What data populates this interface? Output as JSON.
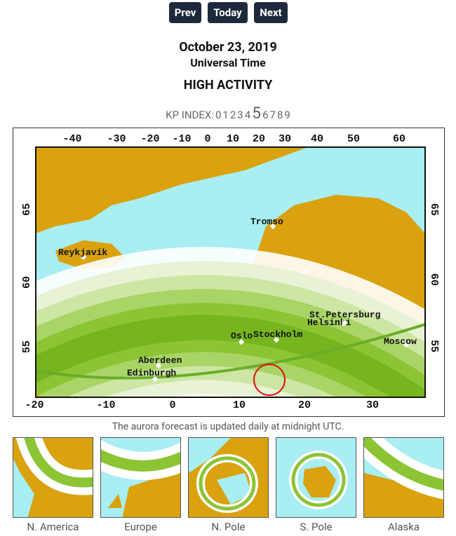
{
  "nav": {
    "prev": "Prev",
    "today": "Today",
    "next": "Next"
  },
  "header": {
    "date": "October 23, 2019",
    "time_zone": "Universal Time",
    "activity": "HIGH ACTIVITY"
  },
  "kp_index": {
    "label": "KP INDEX:",
    "levels": [
      "0",
      "1",
      "2",
      "3",
      "4",
      "5",
      "6",
      "7",
      "8",
      "9"
    ],
    "active": 5
  },
  "map": {
    "top_ticks": [
      "-40",
      "-30",
      "-20",
      "-10",
      "0",
      "10",
      "20",
      "30",
      "40",
      "50",
      "60"
    ],
    "bottom_ticks": [
      "-20",
      "-10",
      "0",
      "10",
      "20",
      "30"
    ],
    "left_ticks": [
      "65",
      "60",
      "55"
    ],
    "right_ticks": [
      "65",
      "60",
      "55"
    ],
    "cities": [
      "Tromso",
      "Reykjavik",
      "Oslo",
      "Stockholm",
      "Helsinki",
      "St.Petersburg",
      "Moscow",
      "Aberdeen",
      "Edinburgh"
    ]
  },
  "caption": "The aurora forecast is updated daily at midnight UTC.",
  "thumbnails": [
    "N. America",
    "Europe",
    "N. Pole",
    "S. Pole",
    "Alaska"
  ]
}
